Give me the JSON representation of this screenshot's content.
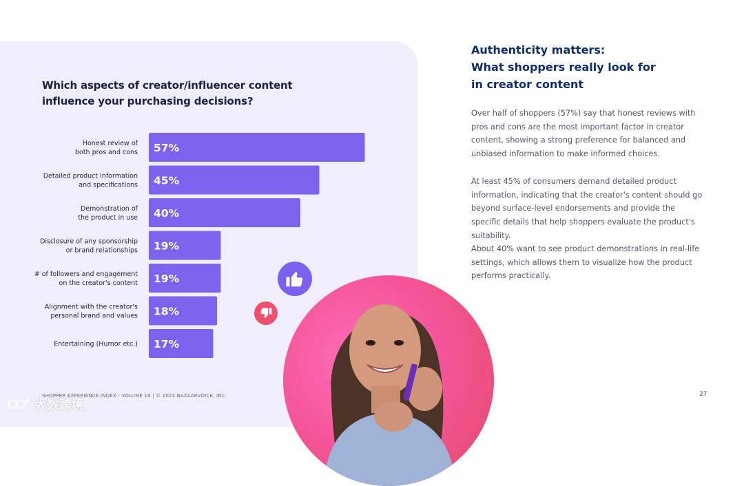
{
  "question": {
    "line1": "Which aspects of creator/influencer content",
    "line2": "influence your purchasing decisions?"
  },
  "chart_data": {
    "type": "bar",
    "orientation": "horizontal",
    "title": "Which aspects of creator/influencer content influence your purchasing decisions?",
    "categories": [
      [
        "Honest review of",
        "both pros and cons"
      ],
      [
        "Detailed product information",
        "and specifications"
      ],
      [
        "Demonstration of",
        "the product in use"
      ],
      [
        "Disclosure of any sponsorship",
        "or brand relationships"
      ],
      [
        "# of followers and engagement",
        "on the creator's content"
      ],
      [
        "Alignment with the creator's",
        "personal brand and values"
      ],
      [
        "Entertaining (Humor etc.)"
      ]
    ],
    "values": [
      57,
      45,
      40,
      19,
      19,
      18,
      17
    ],
    "value_labels": [
      "57%",
      "45%",
      "40%",
      "19%",
      "19%",
      "18%",
      "17%"
    ],
    "unit": "%",
    "xlim": [
      0,
      100
    ],
    "grid": false,
    "bar_color": "#7b63ee"
  },
  "icons": {
    "thumbs_up": "thumbs-up-icon",
    "thumbs_down": "thumbs-down-icon"
  },
  "colors": {
    "panel": "#f0eefb",
    "bar": "#7b63ee",
    "heading": "#0f2d6b",
    "thumb_up_bg": "#7a62ee",
    "thumb_down_bg": "#f0506e",
    "photo_circle": "#f4559a"
  },
  "right": {
    "heading": [
      "Authenticity matters:",
      "What shoppers really look for",
      "in creator content"
    ],
    "paragraphs": [
      "Over half of shoppers (57%) say that honest reviews with pros and cons are the most important factor in creator content, showing a strong preference for balanced and unbiased information to make informed choices.",
      "At least 45% of consumers demand detailed product information, indicating that the creator's content should go beyond surface-level endorsements and provide the specific details that help shoppers evaluate the product's suitability.",
      "About 40% want to see product demonstrations in real-life settings, which allows them to visualize how the product performs practically."
    ]
  },
  "footer": {
    "left": "SHOPPER EXPERIENCE INDEX - VOLUME 18  |  © 2024 BAZAARVOICE, INC.",
    "page_number": "27"
  },
  "watermark": "大数跨境"
}
